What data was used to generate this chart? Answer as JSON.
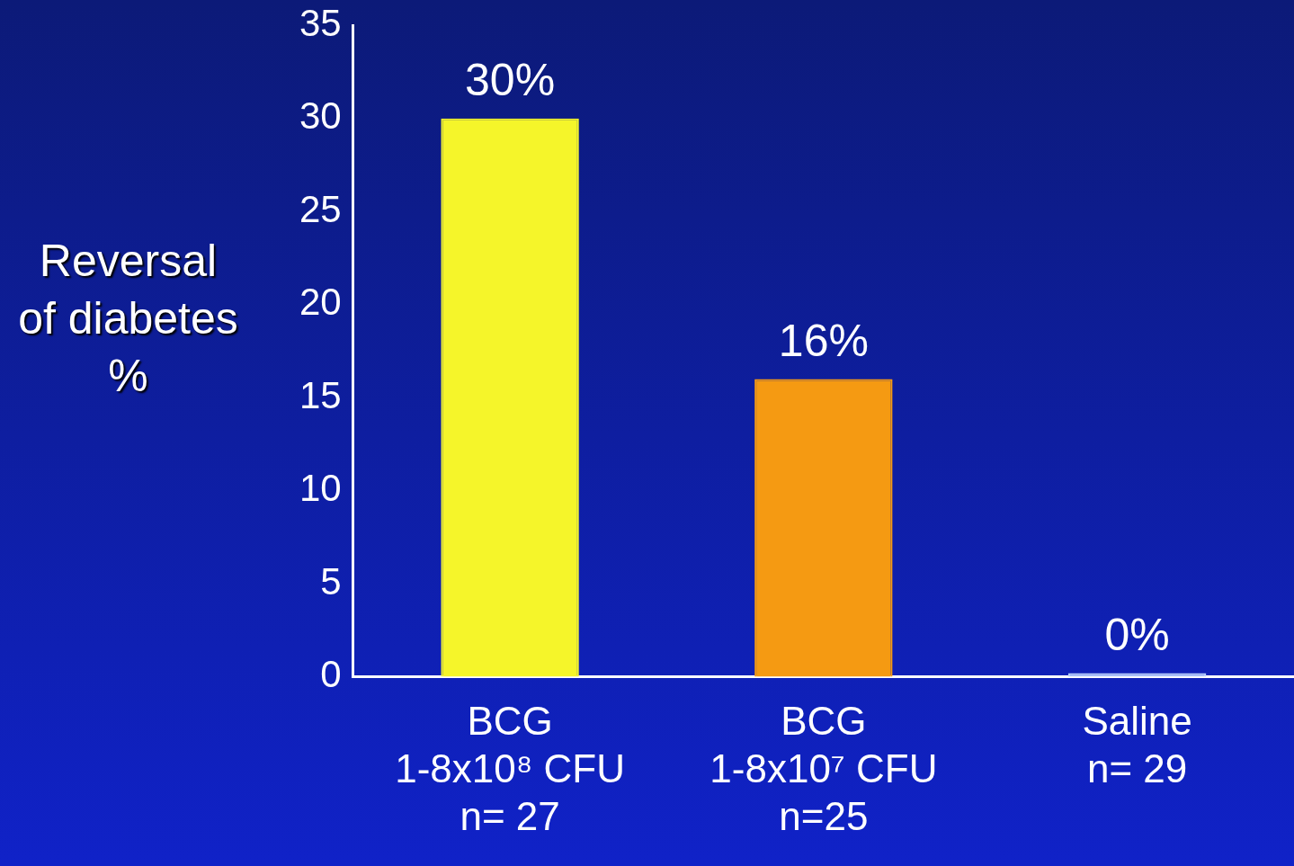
{
  "chart_data": {
    "type": "bar",
    "ylabel": "Reversal\nof diabetes\n%",
    "categories": [
      "BCG\n1-8x10⁸ CFU\nn= 27",
      "BCG\n1-8x10⁷ CFU\nn=25",
      "Saline\nn= 29"
    ],
    "values": [
      30,
      16,
      0
    ],
    "colors": [
      "#f5f52a",
      "#f59a12",
      "#b8d0ff"
    ],
    "value_labels": [
      "30%",
      "16%",
      "0%"
    ],
    "ylim": [
      0,
      35
    ],
    "yticks": [
      0,
      5,
      10,
      15,
      20,
      25,
      30,
      35
    ],
    "grid": false,
    "legend": false
  }
}
